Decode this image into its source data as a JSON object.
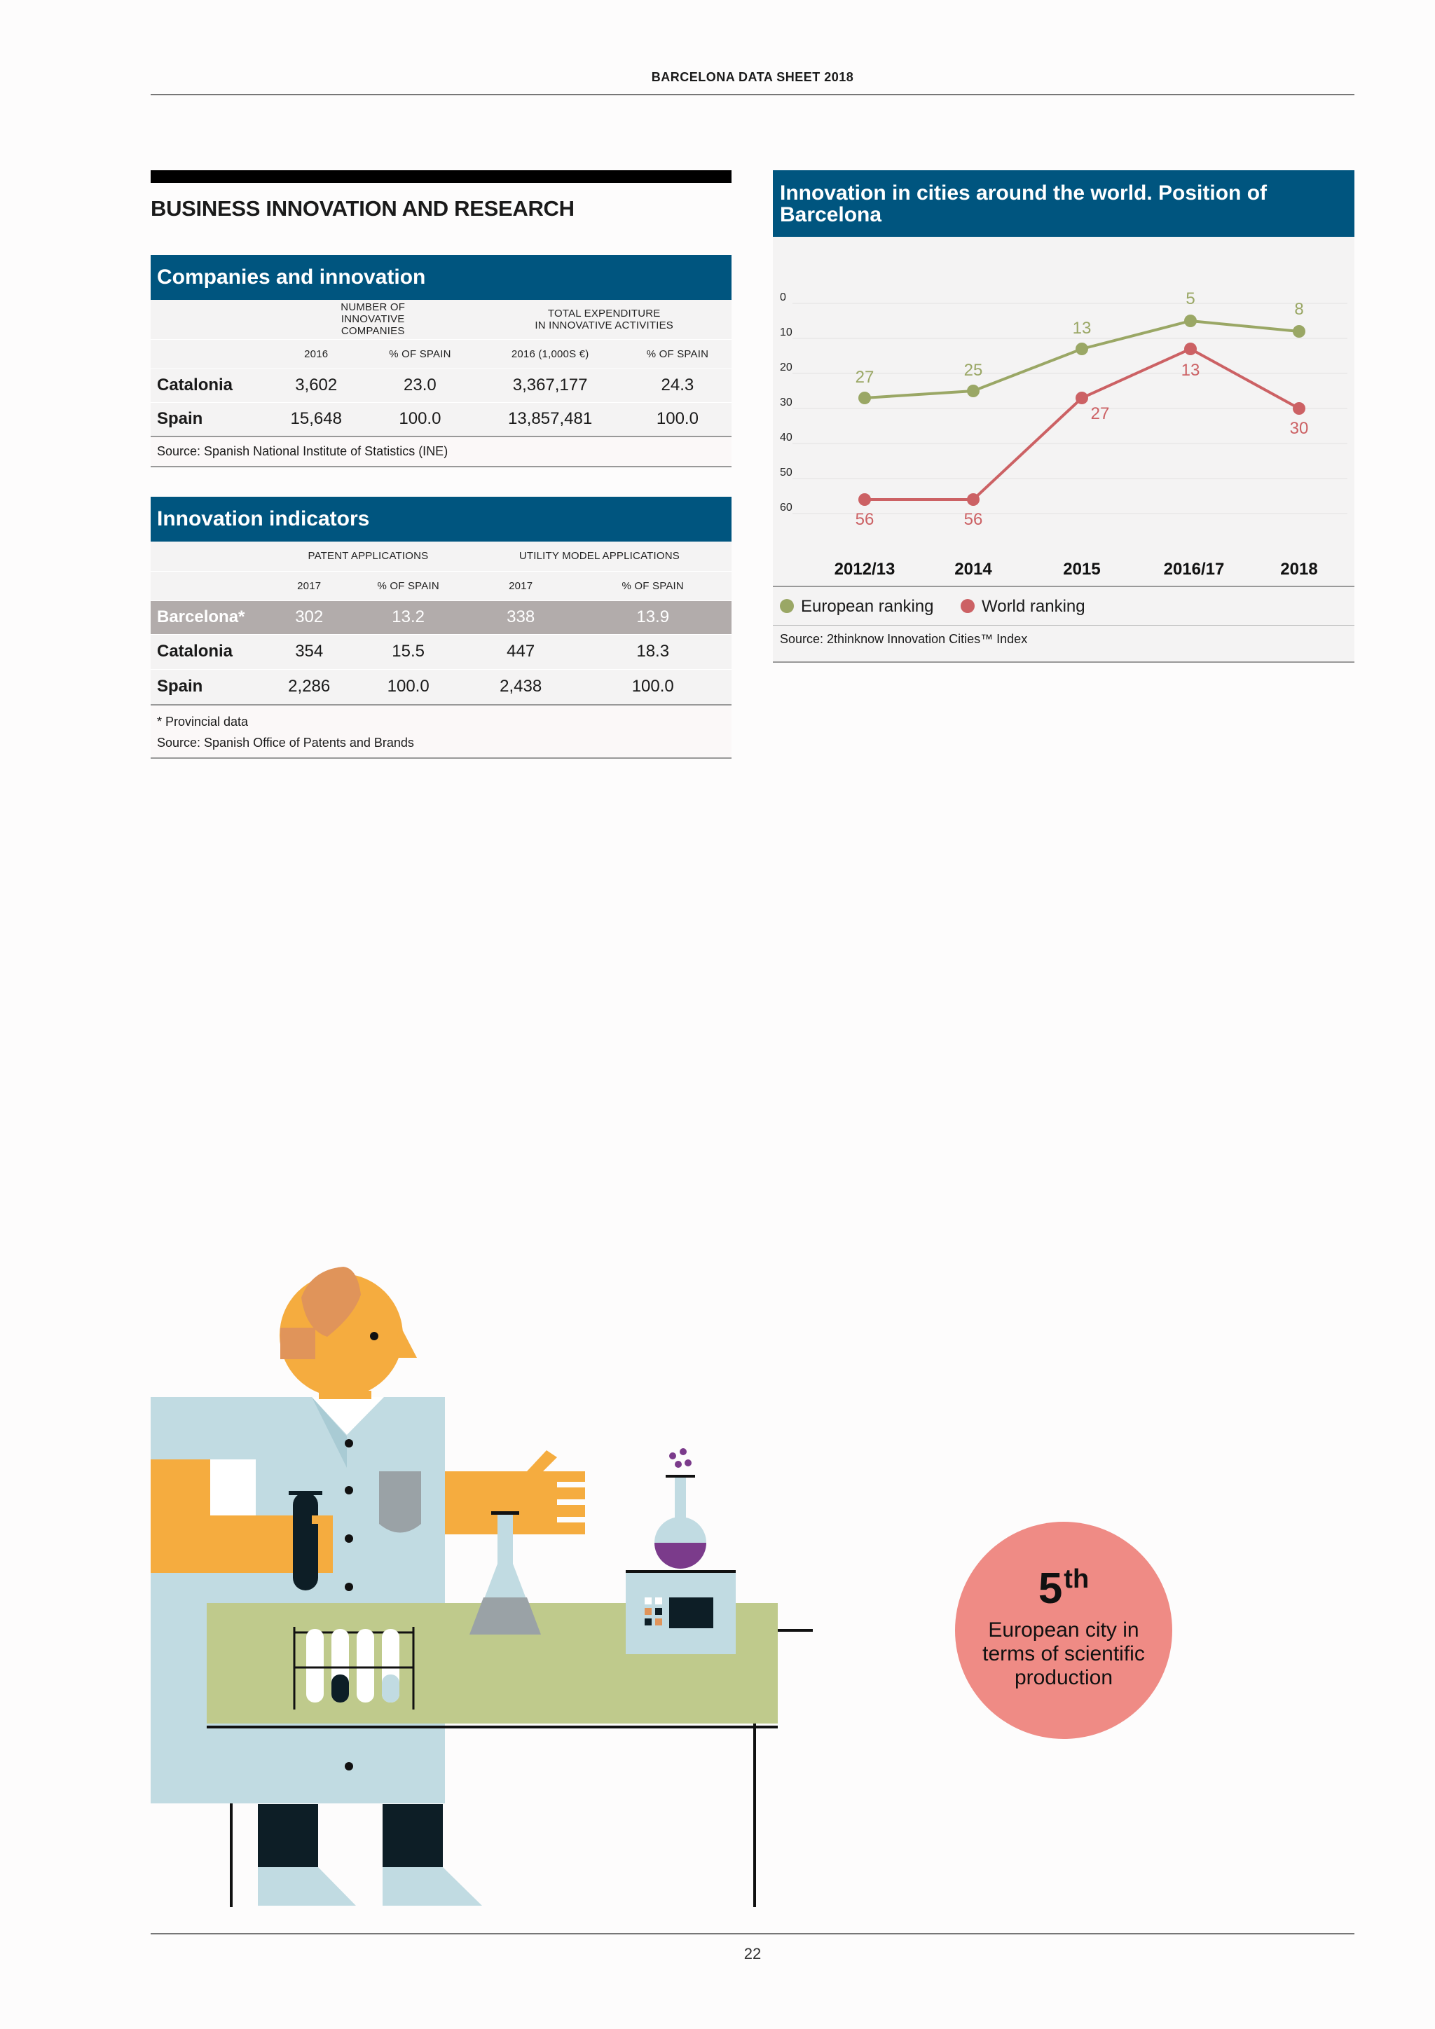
{
  "header": {
    "running_head": "BARCELONA DATA SHEET 2018"
  },
  "footer": {
    "page_number": "22"
  },
  "section": {
    "title": "BUSINESS INNOVATION AND RESEARCH"
  },
  "companies": {
    "title": "Companies and innovation",
    "group1": "NUMBER OF INNOVATIVE COMPANIES",
    "group2_line1": "TOTAL EXPENDITURE",
    "group2_line2": "IN INNOVATIVE ACTIVITIES",
    "columns": [
      "2016",
      "% OF SPAIN",
      "2016 (1,000S €)",
      "% OF SPAIN"
    ],
    "rows": [
      {
        "label": "Catalonia",
        "values": [
          "3,602",
          "23.0",
          "3,367,177",
          "24.3"
        ]
      },
      {
        "label": "Spain",
        "values": [
          "15,648",
          "100.0",
          "13,857,481",
          "100.0"
        ]
      }
    ],
    "source": "Source: Spanish National Institute of Statistics (INE)"
  },
  "indicators": {
    "title": "Innovation indicators",
    "group1": "PATENT APPLICATIONS",
    "group2": "UTILITY MODEL APPLICATIONS",
    "columns": [
      "2017",
      "% OF SPAIN",
      "2017",
      "% OF SPAIN"
    ],
    "rows": [
      {
        "label": "Barcelona*",
        "values": [
          "302",
          "13.2",
          "338",
          "13.9"
        ]
      },
      {
        "label": "Catalonia",
        "values": [
          "354",
          "15.5",
          "447",
          "18.3"
        ]
      },
      {
        "label": "Spain",
        "values": [
          "2,286",
          "100.0",
          "2,438",
          "100.0"
        ]
      }
    ],
    "note": "* Provincial data",
    "source": "Source: Spanish Office of Patents and Brands"
  },
  "chart_data": {
    "type": "line",
    "title": "Innovation in cities around the world. Position of Barcelona",
    "categories": [
      "2012/13",
      "2014",
      "2015",
      "2016/17",
      "2018"
    ],
    "y_ticks": [
      "0",
      "10",
      "20",
      "30",
      "40",
      "50",
      "60"
    ],
    "ylim": [
      0,
      60
    ],
    "y_inverted": true,
    "grid": true,
    "legend_position": "bottom",
    "series": [
      {
        "name": "European ranking",
        "color": "#9aa765",
        "values": [
          27,
          25,
          13,
          5,
          8
        ]
      },
      {
        "name": "World ranking",
        "color": "#cc6164",
        "values": [
          56,
          56,
          27,
          13,
          30
        ]
      }
    ],
    "source": "Source: 2thinknow Innovation Cities™ Index"
  },
  "highlight": {
    "rank": "5",
    "suffix": "th",
    "description": "European city in terms of scientific production",
    "color": "#ef8b85"
  },
  "colors": {
    "panel_blue": "#00557f",
    "table_bg": "#f4f3f3",
    "highlight_row": "#b2acab"
  }
}
